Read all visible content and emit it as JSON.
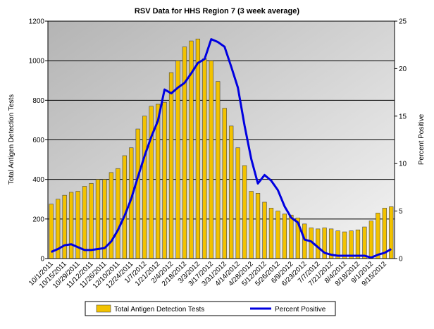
{
  "chart_data": {
    "type": "bar",
    "title": "RSV Data for HHS Region 7 (3 week average)",
    "y_label": "Total Antigen Detection Tests",
    "y2_label": "Percent Positive",
    "categories": [
      "10/1/2011",
      null,
      "10/15/2011",
      null,
      "10/29/2011",
      null,
      "11/12/2011",
      null,
      "11/26/2011",
      null,
      "12/10/2011",
      null,
      "12/24/2011",
      null,
      "1/7/2012",
      null,
      "1/21/2012",
      null,
      "2/4/2012",
      null,
      "2/18/2012",
      null,
      "3/3/2012",
      null,
      "3/17/2012",
      null,
      "3/31/2012",
      null,
      "4/14/2012",
      null,
      "4/28/2012",
      null,
      "5/12/2012",
      null,
      "5/26/2012",
      null,
      "6/9/2012",
      null,
      "6/23/2012",
      null,
      "7/7/2012",
      null,
      "7/21/2012",
      null,
      "8/4/2012",
      null,
      "8/18/2012",
      null,
      "9/1/2012",
      null,
      "9/15/2012",
      null
    ],
    "series": [
      {
        "name": "Total Antigen Detection Tests",
        "type": "bar",
        "color": "#f2c200",
        "values": [
          275,
          300,
          320,
          335,
          340,
          365,
          380,
          400,
          400,
          435,
          455,
          520,
          560,
          655,
          720,
          770,
          780,
          790,
          940,
          1000,
          1070,
          1100,
          1110,
          1010,
          1000,
          895,
          760,
          670,
          560,
          470,
          340,
          330,
          285,
          255,
          240,
          225,
          220,
          205,
          175,
          155,
          150,
          155,
          150,
          140,
          135,
          140,
          145,
          160,
          190,
          230,
          255,
          262
        ]
      },
      {
        "name": "Percent Positive",
        "type": "line",
        "axis": "y2",
        "color": "#0000e0",
        "values": [
          0.7,
          1.0,
          1.4,
          1.5,
          1.2,
          0.9,
          0.9,
          1.0,
          1.1,
          1.8,
          3.0,
          4.5,
          6.3,
          8.6,
          10.8,
          12.8,
          14.5,
          17.8,
          17.4,
          18.0,
          18.5,
          19.5,
          20.6,
          21.0,
          23.1,
          22.8,
          22.3,
          20.2,
          18.0,
          14.0,
          10.5,
          7.9,
          8.8,
          8.2,
          7.2,
          5.5,
          4.3,
          3.8,
          2.0,
          1.8,
          1.2,
          0.6,
          0.4,
          0.3,
          0.3,
          0.3,
          0.3,
          0.3,
          0.1,
          0.4,
          0.6,
          1.0
        ]
      }
    ],
    "ylim": [
      0,
      1200
    ],
    "yticks": [
      0,
      200,
      400,
      600,
      800,
      1000,
      1200
    ],
    "y2lim": [
      0,
      25
    ],
    "y2ticks": [
      0,
      5,
      10,
      15,
      20,
      25
    ],
    "grid": true
  }
}
